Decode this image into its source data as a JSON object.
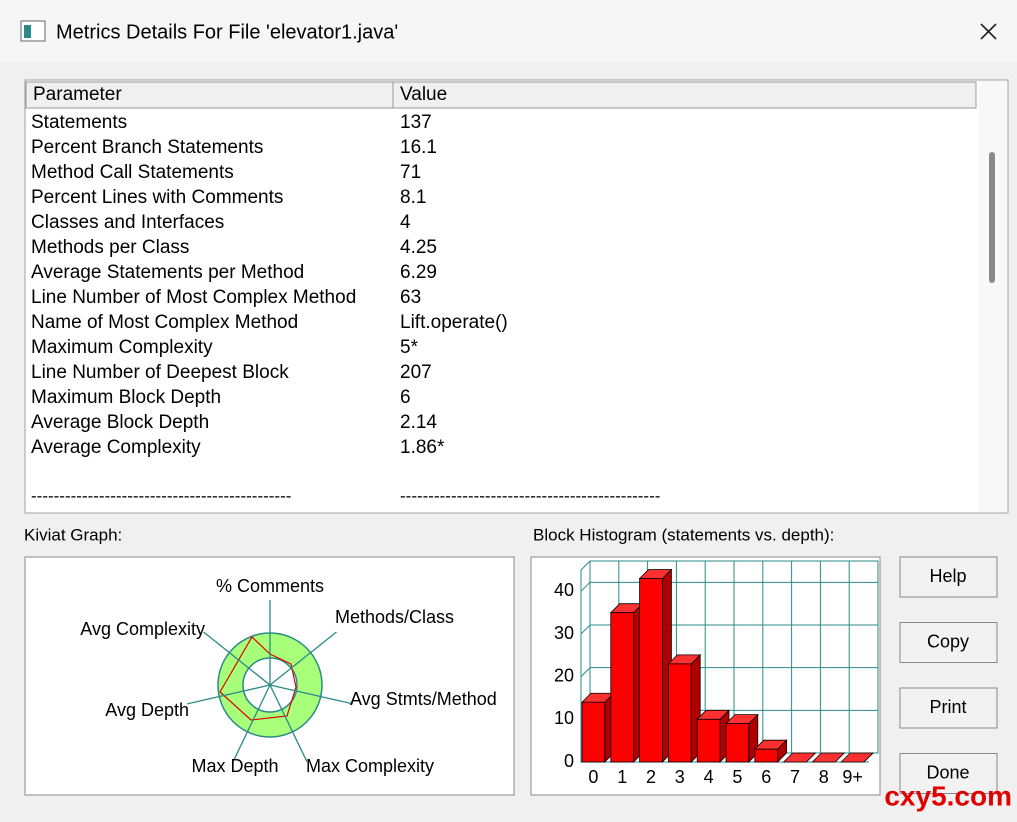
{
  "window": {
    "title": "Metrics Details For File 'elevator1.java'"
  },
  "table": {
    "columns": [
      "Parameter",
      "Value"
    ],
    "rows": [
      [
        "Statements",
        "137"
      ],
      [
        "Percent Branch Statements",
        "16.1"
      ],
      [
        "Method Call Statements",
        "71"
      ],
      [
        "Percent Lines with Comments",
        "8.1"
      ],
      [
        "Classes and Interfaces",
        "4"
      ],
      [
        "Methods per Class",
        "4.25"
      ],
      [
        "Average Statements per Method",
        "6.29"
      ],
      [
        "Line Number of Most Complex Method",
        "63"
      ],
      [
        "Name of Most Complex Method",
        "Lift.operate()"
      ],
      [
        "Maximum Complexity",
        "5*"
      ],
      [
        "Line Number of Deepest Block",
        "207"
      ],
      [
        "Maximum Block Depth",
        "6"
      ],
      [
        "Average Block Depth",
        "2.14"
      ],
      [
        "Average Complexity",
        "1.86*"
      ]
    ],
    "separator": [
      "----------------------------------------------",
      "----------------------------------------------"
    ]
  },
  "kiviat": {
    "label": "Kiviat Graph:",
    "axes": [
      "% Comments",
      "Methods/Class",
      "Avg Stmts/Method",
      "Max Complexity",
      "Max Depth",
      "Avg Depth",
      "Avg Complexity"
    ]
  },
  "histogram": {
    "label": "Block Histogram (statements vs. depth):",
    "type": "bar",
    "categories": [
      "0",
      "1",
      "2",
      "3",
      "4",
      "5",
      "6",
      "7",
      "8",
      "9+"
    ],
    "values": [
      14,
      35,
      43,
      23,
      10,
      9,
      3,
      0,
      0,
      0
    ],
    "color": "#ff0000",
    "ylim": [
      0,
      45
    ],
    "yticks": [
      0,
      10,
      20,
      30,
      40
    ],
    "grid": true
  },
  "buttons": [
    "Help",
    "Copy",
    "Print",
    "Done"
  ],
  "watermark": "cxy5.com"
}
